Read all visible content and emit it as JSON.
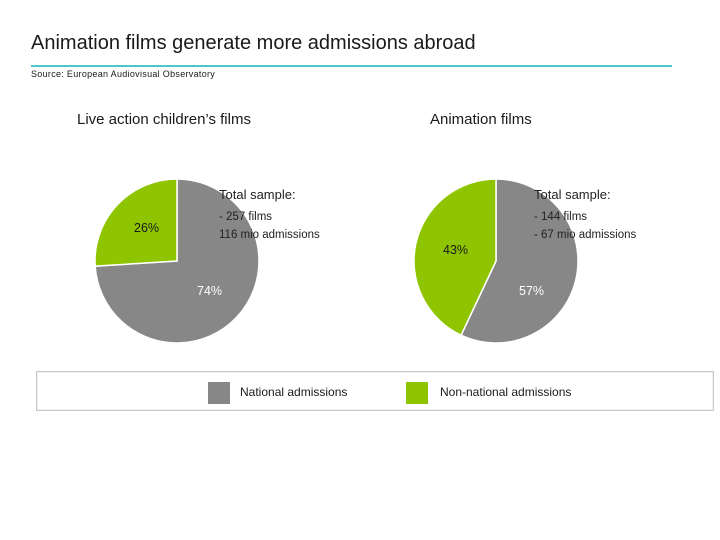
{
  "header": {
    "title": "Animation films generate more admissions abroad",
    "source": "Source: European Audiovisual Observatory"
  },
  "colors": {
    "national": "#878787",
    "non_national": "#8ec400",
    "accent": "#4fc6c9"
  },
  "chart_data": [
    {
      "type": "pie",
      "title": "Live action children’s films",
      "labels": [
        "National admissions",
        "Non-national admissions"
      ],
      "values": [
        74,
        26
      ],
      "value_labels": [
        "74%",
        "26%"
      ],
      "sample": {
        "heading": "Total sample:",
        "lines": [
          "- 257 films",
          "116 mio admissions"
        ]
      }
    },
    {
      "type": "pie",
      "title": "Animation films",
      "labels": [
        "National admissions",
        "Non-national admissions"
      ],
      "values": [
        57,
        43
      ],
      "value_labels": [
        "57%",
        "43%"
      ],
      "sample": {
        "heading": "Total sample:",
        "lines": [
          "- 144 films",
          "- 67 mio admissions"
        ]
      }
    }
  ],
  "legend": {
    "items": [
      "National admissions",
      "Non-national admissions"
    ]
  }
}
